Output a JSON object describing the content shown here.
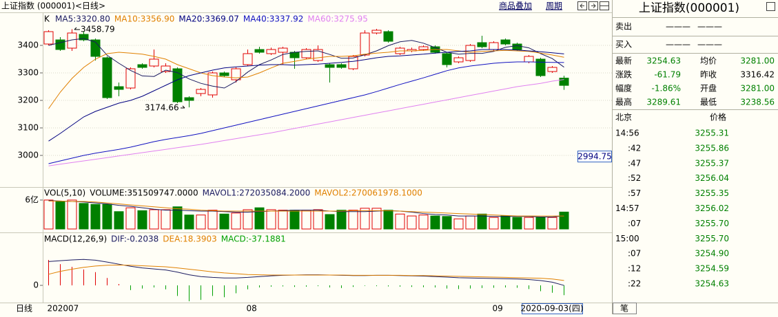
{
  "header": {
    "title": "上证指数 (000001)<日线>",
    "links": [
      "商品叠加",
      "周期"
    ]
  },
  "chart_data": [
    {
      "type": "candlestick",
      "label": "K",
      "up_color": "#e00000",
      "down_color": "#008000",
      "grid": true,
      "categories": [
        "202007",
        null,
        null,
        null,
        null,
        null,
        null,
        null,
        null,
        null,
        null,
        null,
        null,
        null,
        null,
        null,
        null,
        "08",
        null,
        null,
        null,
        null,
        null,
        null,
        null,
        null,
        null,
        null,
        null,
        null,
        null,
        null,
        null,
        null,
        null,
        null,
        null,
        null,
        "09",
        null,
        null,
        null,
        null,
        null,
        null
      ],
      "open": [
        3405,
        3420,
        3390,
        3440,
        3420,
        3355,
        3250,
        3245,
        3330,
        3325,
        3305,
        3315,
        3210,
        3225,
        3220,
        3300,
        3275,
        3330,
        3385,
        3370,
        3375,
        3375,
        3355,
        3345,
        3330,
        3330,
        3315,
        3365,
        3445,
        3450,
        3370,
        3380,
        3385,
        3395,
        3370,
        3340,
        3345,
        3410,
        3385,
        3420,
        3405,
        3340,
        3350,
        3305,
        3281.0
      ],
      "high": [
        3455,
        3430,
        3458.79,
        3450,
        3425,
        3360,
        3265,
        3320,
        3335,
        3385,
        3335,
        3320,
        3215,
        3245,
        3305,
        3305,
        3320,
        3385,
        3395,
        3392,
        3395,
        3380,
        3390,
        3400,
        3335,
        3335,
        3365,
        3455,
        3460,
        3455,
        3395,
        3392,
        3400,
        3400,
        3375,
        3360,
        3405,
        3435,
        3415,
        3425,
        3410,
        3365,
        3355,
        3325,
        3289.61
      ],
      "low": [
        3400,
        3380,
        3380,
        3415,
        3345,
        3205,
        3215,
        3240,
        3315,
        3320,
        3300,
        3190,
        3174.66,
        3215,
        3210,
        3285,
        3265,
        3325,
        3370,
        3365,
        3330,
        3315,
        3350,
        3340,
        3265,
        3315,
        3310,
        3360,
        3440,
        3410,
        3365,
        3375,
        3380,
        3370,
        3320,
        3335,
        3340,
        3390,
        3380,
        3400,
        3380,
        3335,
        3285,
        3300,
        3238.56
      ],
      "close": [
        3450,
        3385,
        3445,
        3420,
        3360,
        3210,
        3240,
        3315,
        3320,
        3350,
        3325,
        3195,
        3200,
        3240,
        3300,
        3290,
        3315,
        3370,
        3375,
        3385,
        3390,
        3355,
        3385,
        3385,
        3320,
        3320,
        3360,
        3445,
        3455,
        3415,
        3390,
        3385,
        3395,
        3375,
        3330,
        3355,
        3400,
        3395,
        3410,
        3405,
        3385,
        3360,
        3290,
        3320,
        3254.63
      ],
      "series": [
        {
          "name": "MA5:3320.80",
          "color": "#1a1a60",
          "values": [
            3400,
            3410,
            3420,
            3425,
            3412,
            3364,
            3335,
            3309,
            3289,
            3287,
            3310,
            3301,
            3278,
            3262,
            3252,
            3245,
            3269,
            3303,
            3330,
            3347,
            3367,
            3375,
            3378,
            3380,
            3367,
            3353,
            3354,
            3366,
            3380,
            3399,
            3413,
            3418,
            3408,
            3392,
            3375,
            3368,
            3371,
            3371,
            3378,
            3393,
            3399,
            3391,
            3370,
            3352,
            3320.8
          ]
        },
        {
          "name": "MA10:3356.90",
          "color": "#e08000",
          "values": [
            3170,
            3230,
            3280,
            3320,
            3350,
            3370,
            3375,
            3372,
            3368,
            3360,
            3350,
            3330,
            3315,
            3300,
            3290,
            3285,
            3282,
            3285,
            3300,
            3318,
            3335,
            3342,
            3350,
            3355,
            3360,
            3360,
            3362,
            3368,
            3372,
            3375,
            3380,
            3380,
            3382,
            3385,
            3385,
            3380,
            3375,
            3378,
            3380,
            3382,
            3380,
            3378,
            3372,
            3365,
            3356.9
          ]
        },
        {
          "name": "MA20:3369.07",
          "color": "#000080",
          "values": [
            3052,
            3080,
            3110,
            3140,
            3160,
            3175,
            3190,
            3200,
            3215,
            3235,
            3255,
            3275,
            3290,
            3300,
            3310,
            3318,
            3322,
            3325,
            3328,
            3330,
            3330,
            3328,
            3330,
            3332,
            3335,
            3338,
            3342,
            3348,
            3355,
            3360,
            3362,
            3365,
            3368,
            3372,
            3375,
            3378,
            3380,
            3385,
            3385,
            3385,
            3383,
            3380,
            3377,
            3373,
            3369.07
          ]
        },
        {
          "name": "MA40:3337.92",
          "color": "#1010c0",
          "values": [
            2970,
            2980,
            2990,
            3000,
            3008,
            3015,
            3022,
            3030,
            3040,
            3050,
            3058,
            3065,
            3072,
            3080,
            3090,
            3100,
            3110,
            3120,
            3130,
            3140,
            3150,
            3160,
            3170,
            3180,
            3190,
            3200,
            3210,
            3220,
            3232,
            3245,
            3258,
            3270,
            3282,
            3295,
            3308,
            3318,
            3325,
            3330,
            3335,
            3338,
            3340,
            3340,
            3339,
            3338,
            3337.92
          ]
        },
        {
          "name": "MA60:3275.95",
          "color": "#e080f0",
          "values": [
            2962,
            2968,
            2974,
            2980,
            2986,
            2992,
            2998,
            3004,
            3010,
            3016,
            3022,
            3028,
            3034,
            3040,
            3047,
            3054,
            3061,
            3068,
            3075,
            3082,
            3090,
            3098,
            3106,
            3114,
            3122,
            3130,
            3138,
            3146,
            3154,
            3162,
            3170,
            3178,
            3186,
            3194,
            3202,
            3210,
            3218,
            3226,
            3234,
            3242,
            3250,
            3256,
            3262,
            3270,
            3275.95
          ]
        }
      ],
      "ylim": [
        2885,
        3520
      ],
      "yticks": [
        3000,
        3100,
        3200,
        3300,
        3400
      ],
      "cursor_value": 2994.75
    },
    {
      "type": "volume",
      "title": "VOL(5,10)",
      "up_color": "#e00000",
      "down_color": "#008000",
      "series": [
        {
          "name": "VOLUME:351509747.0000",
          "color": "#000000",
          "values": [
            6.0,
            5.7,
            6.0,
            5.3,
            5.1,
            5.1,
            3.6,
            4.4,
            3.8,
            4.0,
            4.0,
            4.6,
            2.9,
            2.9,
            3.9,
            3.1,
            3.3,
            4.0,
            4.4,
            4.0,
            3.9,
            3.9,
            3.9,
            4.0,
            3.0,
            3.9,
            3.9,
            4.3,
            4.3,
            3.9,
            3.1,
            2.7,
            2.9,
            2.7,
            2.6,
            2.1,
            2.7,
            3.1,
            2.4,
            2.7,
            2.4,
            2.4,
            2.4,
            2.4,
            3.515
          ]
        },
        {
          "name": "MAVOL1:272035084.2000",
          "color": "#1a1a60",
          "values": [
            5.9,
            5.8,
            5.7,
            5.6,
            5.4,
            5.2,
            4.9,
            4.7,
            4.4,
            4.1,
            3.9,
            3.9,
            3.8,
            3.7,
            3.7,
            3.6,
            3.5,
            3.5,
            3.6,
            3.7,
            3.8,
            3.9,
            3.9,
            3.9,
            3.7,
            3.6,
            3.6,
            3.6,
            3.7,
            3.8,
            3.7,
            3.5,
            3.2,
            3.0,
            2.9,
            2.7,
            2.7,
            2.7,
            2.6,
            2.6,
            2.6,
            2.6,
            2.5,
            2.5,
            2.72
          ]
        },
        {
          "name": "MAVOL2:270061978.1000",
          "color": "#e08000",
          "values": [
            5.8,
            5.8,
            5.7,
            5.7,
            5.6,
            5.4,
            5.2,
            5.0,
            4.8,
            4.6,
            4.4,
            4.2,
            4.1,
            3.9,
            3.8,
            3.7,
            3.7,
            3.7,
            3.7,
            3.7,
            3.7,
            3.7,
            3.7,
            3.7,
            3.7,
            3.7,
            3.8,
            3.8,
            3.8,
            3.8,
            3.7,
            3.6,
            3.5,
            3.4,
            3.3,
            3.2,
            3.1,
            3.0,
            2.9,
            2.8,
            2.7,
            2.7,
            2.7,
            2.7,
            2.7
          ]
        }
      ],
      "ylim": [
        0,
        8.7
      ],
      "yticks": [
        {
          "value": 6,
          "label": "6亿"
        }
      ]
    },
    {
      "type": "macd",
      "title": "MACD(12,26,9)",
      "up_color": "#e00000",
      "down_color": "#00a000",
      "series": [
        {
          "name": "DIF:-0.2038",
          "color": "#1a1a60",
          "values": [
            90,
            93,
            96,
            98,
            95,
            88,
            80,
            72,
            66,
            62,
            58,
            50,
            40,
            33,
            30,
            28,
            28,
            30,
            33,
            36,
            38,
            39,
            40,
            40,
            39,
            38,
            37,
            37,
            38,
            38,
            37,
            36,
            35,
            33,
            31,
            29,
            28,
            27,
            26,
            25,
            24,
            22,
            18,
            12,
            -0.2038
          ]
        },
        {
          "name": "DEA:18.3903",
          "color": "#e08000",
          "values": [
            42,
            53,
            61,
            68,
            73,
            76,
            77,
            76,
            74,
            72,
            70,
            66,
            61,
            56,
            51,
            47,
            44,
            41,
            40,
            39,
            39,
            39,
            39,
            39,
            39,
            39,
            38,
            38,
            38,
            38,
            38,
            37,
            37,
            36,
            35,
            34,
            33,
            32,
            31,
            30,
            29,
            28,
            27,
            24,
            18.3903
          ]
        },
        {
          "name": "MACD:-37.1881",
          "color": "#00a000",
          "values": [
            96,
            80,
            70,
            60,
            50,
            28,
            5,
            -18,
            -12,
            -8,
            -15,
            -40,
            -60,
            -55,
            -40,
            -45,
            -30,
            -15,
            -8,
            -5,
            -4,
            -6,
            -5,
            -3,
            -8,
            -10,
            -6,
            -2,
            -3,
            -4,
            -5,
            -6,
            -7,
            -8,
            -12,
            -14,
            -12,
            -10,
            -9,
            -8,
            -9,
            -14,
            -22,
            -28,
            -37.1881
          ]
        }
      ],
      "ylim": [
        -65,
        187
      ],
      "yticks": [
        0
      ]
    }
  ],
  "footer": {
    "period": "日线",
    "date": "2020-09-03(四)"
  },
  "quote": {
    "title": "上证指数(000001)",
    "book": [
      [
        "卖出",
        "———",
        "———"
      ],
      [
        "买入",
        "———",
        "———"
      ]
    ],
    "fields": [
      [
        "最新",
        "3254.63",
        "均价",
        "3281.00"
      ],
      [
        "涨跌",
        "-61.79",
        "昨收",
        "3316.42"
      ],
      [
        "幅度",
        "-1.86%",
        "开盘",
        "3281.00"
      ],
      [
        "最高",
        "3289.61",
        "最低",
        "3238.56"
      ]
    ],
    "ticks_header": [
      "北京",
      "价格"
    ],
    "ticks": [
      [
        "14:56",
        "3255.31"
      ],
      [
        ":42",
        "3255.86"
      ],
      [
        ":47",
        "3255.37"
      ],
      [
        ":52",
        "3256.04"
      ],
      [
        ":57",
        "3255.35"
      ],
      [
        "14:57",
        "3256.02"
      ],
      [
        ":07",
        "3255.70"
      ],
      [
        "15:00",
        "3255.70"
      ],
      [
        ":07",
        "3254.90"
      ],
      [
        ":12",
        "3254.59"
      ],
      [
        ":22",
        "3254.63"
      ]
    ],
    "tab": "笔"
  }
}
